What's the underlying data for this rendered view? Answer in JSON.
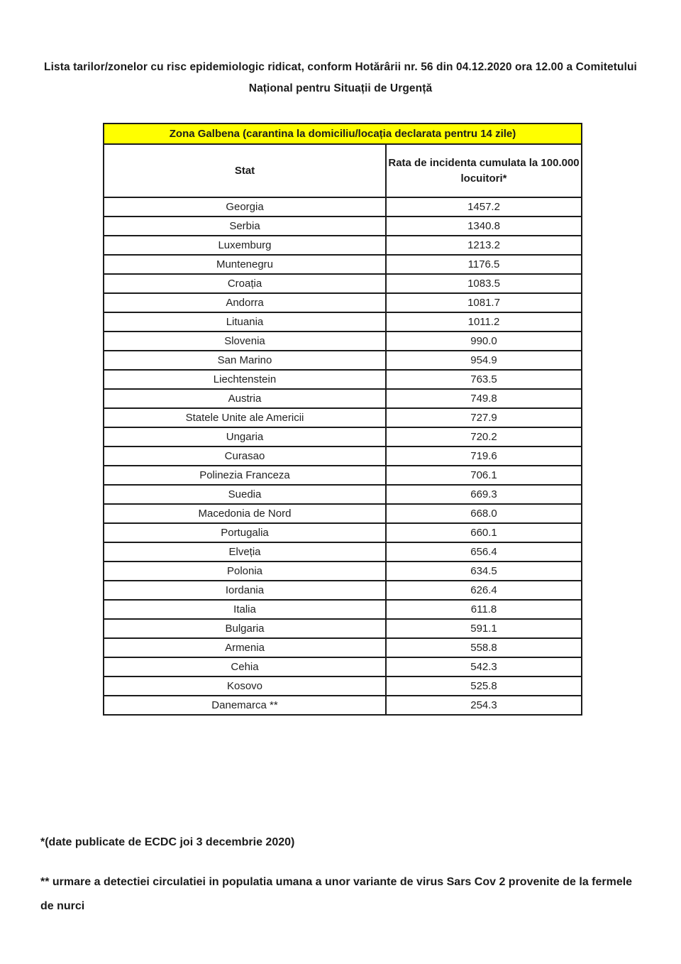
{
  "title": "Lista tarilor/zonelor cu risc epidemiologic ridicat, conform Hotărârii nr. 56 din 04.12.2020 ora 12.00 a Comitetului Național pentru Situații de Urgență",
  "table": {
    "zone_header": "Zona Galbena (carantina la domiciliu/locația declarata pentru 14 zile)",
    "columns": {
      "stat": "Stat",
      "rate": "Rata de incidenta cumulata la 100.000 locuitori*"
    },
    "rows": [
      {
        "stat": "Georgia",
        "rate": "1457.2"
      },
      {
        "stat": "Serbia",
        "rate": "1340.8"
      },
      {
        "stat": "Luxemburg",
        "rate": "1213.2"
      },
      {
        "stat": "Muntenegru",
        "rate": "1176.5"
      },
      {
        "stat": "Croația",
        "rate": "1083.5"
      },
      {
        "stat": "Andorra",
        "rate": "1081.7"
      },
      {
        "stat": "Lituania",
        "rate": "1011.2"
      },
      {
        "stat": "Slovenia",
        "rate": "990.0"
      },
      {
        "stat": "San Marino",
        "rate": "954.9"
      },
      {
        "stat": "Liechtenstein",
        "rate": "763.5"
      },
      {
        "stat": "Austria",
        "rate": "749.8"
      },
      {
        "stat": "Statele Unite ale Americii",
        "rate": "727.9"
      },
      {
        "stat": "Ungaria",
        "rate": "720.2"
      },
      {
        "stat": "Curasao",
        "rate": "719.6"
      },
      {
        "stat": "Polinezia Franceza",
        "rate": "706.1"
      },
      {
        "stat": "Suedia",
        "rate": "669.3"
      },
      {
        "stat": "Macedonia de Nord",
        "rate": "668.0"
      },
      {
        "stat": "Portugalia",
        "rate": "660.1"
      },
      {
        "stat": "Elveția",
        "rate": "656.4"
      },
      {
        "stat": "Polonia",
        "rate": "634.5"
      },
      {
        "stat": "Iordania",
        "rate": "626.4"
      },
      {
        "stat": "Italia",
        "rate": "611.8"
      },
      {
        "stat": "Bulgaria",
        "rate": "591.1"
      },
      {
        "stat": "Armenia",
        "rate": "558.8"
      },
      {
        "stat": "Cehia",
        "rate": "542.3"
      },
      {
        "stat": "Kosovo",
        "rate": "525.8"
      },
      {
        "stat": "Danemarca **",
        "rate": "254.3"
      }
    ]
  },
  "notes": {
    "ecdc": "*(date publicate de ECDC joi 3 decembrie 2020)",
    "mink": "** urmare a detectiei circulatiei in populatia umana a unor variante de virus Sars Cov 2 provenite de la fermele de nurci"
  },
  "colors": {
    "zone_header_bg": "#FFFF00",
    "border": "#1b1b1b",
    "text": "#1b1b1b",
    "page_bg": "#FFFFFF"
  }
}
